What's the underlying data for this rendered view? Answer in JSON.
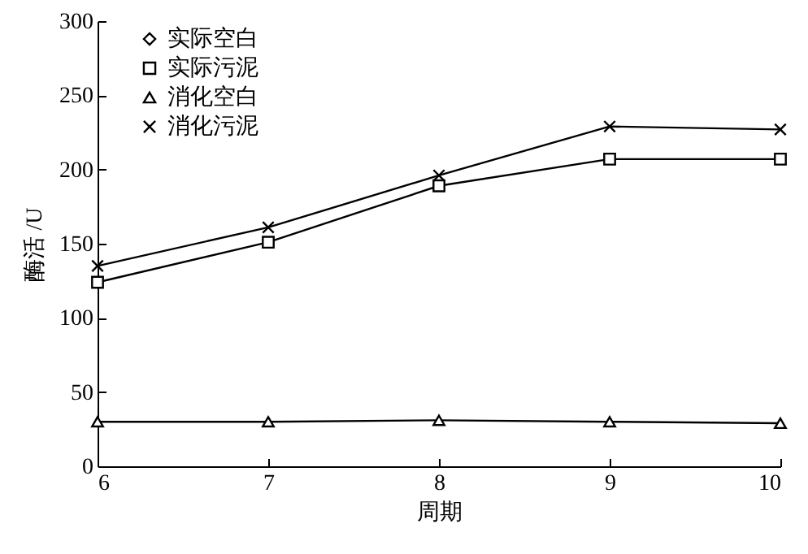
{
  "chart_data": {
    "type": "line",
    "xlabel": "周期",
    "ylabel": "酶活 /U",
    "x": [
      6,
      7,
      8,
      9,
      10
    ],
    "xlim": [
      6,
      10
    ],
    "xticks": [
      6,
      7,
      8,
      9,
      10
    ],
    "ylim": [
      0,
      300
    ],
    "yticks": [
      0,
      50,
      100,
      150,
      200,
      250,
      300
    ],
    "grid": false,
    "legend": "top left",
    "line_style": "solid",
    "series": [
      {
        "name": "实际空白",
        "color": "#000000",
        "marker": "diamond",
        "values": [
          null,
          null,
          null,
          null,
          null
        ]
      },
      {
        "name": "实际污泥",
        "color": "#000000",
        "marker": "square",
        "values": [
          124,
          151,
          189,
          207,
          207
        ]
      },
      {
        "name": "消化空白",
        "color": "#000000",
        "marker": "triangle",
        "values": [
          30,
          30,
          31,
          30,
          29
        ]
      },
      {
        "name": "消化污泥",
        "color": "#000000",
        "marker": "cross",
        "values": [
          135,
          161,
          196,
          229,
          227
        ]
      }
    ]
  }
}
